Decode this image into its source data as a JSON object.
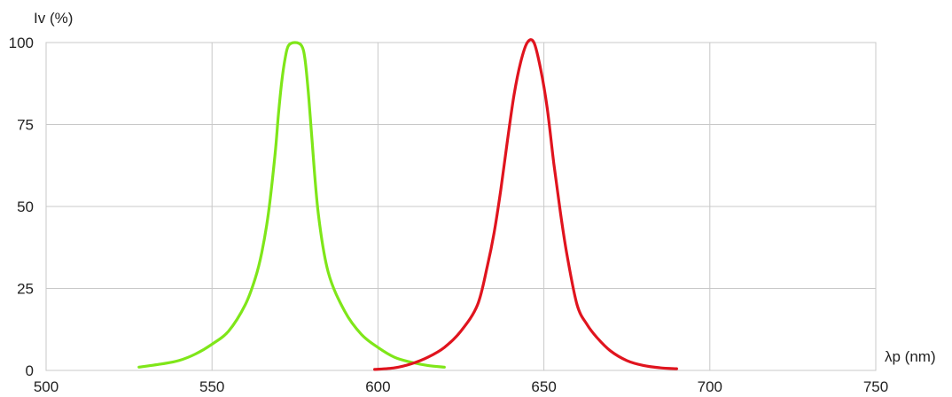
{
  "chart_data": {
    "type": "line",
    "title": "",
    "xlabel": "λp (nm)",
    "ylabel": "Iv (%)",
    "xlim": [
      500,
      750
    ],
    "ylim": [
      0,
      100
    ],
    "x_ticks": [
      500,
      550,
      600,
      650,
      700,
      750
    ],
    "y_ticks": [
      0,
      25,
      50,
      75,
      100
    ],
    "grid": true,
    "series": [
      {
        "color": "#7fe619",
        "x": [
          528,
          535,
          540,
          545,
          550,
          555,
          560,
          563,
          565,
          567,
          569,
          570,
          571,
          572,
          573,
          575,
          577,
          578,
          579,
          580,
          582,
          585,
          590,
          595,
          600,
          605,
          610,
          615,
          620
        ],
        "y": [
          1,
          2,
          3,
          5,
          8,
          12,
          20,
          28,
          36,
          48,
          66,
          78,
          88,
          95,
          99,
          100,
          99,
          95,
          85,
          72,
          48,
          30,
          18,
          11,
          7,
          4,
          2.5,
          1.5,
          1
        ]
      },
      {
        "color": "#e0141e",
        "x": [
          599,
          605,
          610,
          615,
          620,
          625,
          630,
          633,
          635,
          637,
          639,
          641,
          643,
          645,
          647,
          649,
          651,
          653,
          655,
          657,
          660,
          663,
          666,
          670,
          675,
          680,
          685,
          690
        ],
        "y": [
          0.3,
          0.8,
          2,
          4,
          7,
          12,
          20,
          32,
          42,
          55,
          70,
          84,
          94,
          100,
          100,
          92,
          80,
          63,
          48,
          35,
          20,
          14,
          10,
          6,
          3,
          1.5,
          0.8,
          0.5
        ]
      }
    ]
  }
}
